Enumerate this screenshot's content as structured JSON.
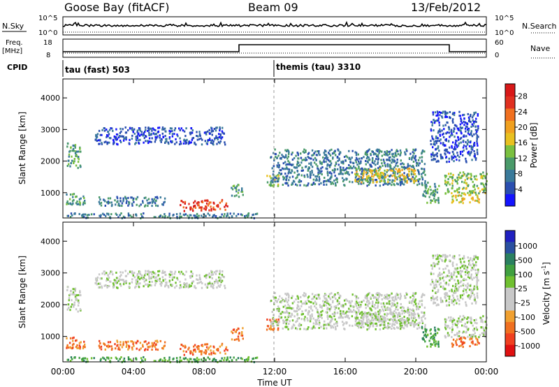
{
  "header": {
    "station": "Goose Bay (fitACF)",
    "beam": "Beam 09",
    "date": "13/Feb/2012"
  },
  "summary_panels": {
    "nsky_label": "N.Sky",
    "nsky_ticks": [
      "10^5",
      "10^0"
    ],
    "nsearch_label": "N.Search",
    "nsearch_ticks": [
      "10^5",
      "10^0"
    ],
    "freq_label": "Freq.",
    "freq_unit": "[MHz]",
    "freq_ticks": [
      "18",
      "8"
    ],
    "nave_label": "Nave",
    "nave_ticks": [
      "60",
      "0"
    ],
    "cpid_label": "CPID",
    "cpid_modes": [
      {
        "name": "tau (fast) 503",
        "start_hour": 0
      },
      {
        "name": "themis (tau) 3310",
        "start_hour": 12
      }
    ]
  },
  "axes": {
    "xlabel": "Time UT",
    "x_ticks": [
      "00:00",
      "04:00",
      "08:00",
      "12:00",
      "16:00",
      "20:00",
      "00:00"
    ],
    "x_hours": [
      0,
      4,
      8,
      12,
      16,
      20,
      24
    ],
    "ylabel": "Slant Range [km]",
    "y_ticks": [
      1000,
      2000,
      3000,
      4000
    ],
    "ylim": [
      200,
      4600
    ]
  },
  "colorbars": {
    "power": {
      "label": "Power [dB]",
      "ticks": [
        "4",
        "8",
        "12",
        "16",
        "20",
        "24",
        "28"
      ],
      "colors": [
        "#1414ff",
        "#2a4fb0",
        "#3a7a9a",
        "#4a9a6a",
        "#7ac040",
        "#e8c020",
        "#f0a020",
        "#f07020",
        "#e03020",
        "#d81818"
      ]
    },
    "velocity": {
      "label": "Velocity [m s",
      "label_sup": "-1",
      "label_close": "]",
      "ticks": [
        "1000",
        "500",
        "100",
        "25",
        "-25",
        "-100",
        "-500",
        "-1000"
      ],
      "colors": [
        "#2020c0",
        "#2a50a0",
        "#2a8060",
        "#40a040",
        "#70c030",
        "#c8c8c8",
        "#c8c8c8",
        "#f0a030",
        "#f07020",
        "#f04020",
        "#e01010"
      ]
    }
  },
  "chart_data": [
    {
      "type": "heatmap",
      "title": "Power",
      "xlabel": "Time UT",
      "ylabel": "Slant Range [km]",
      "ylim": [
        200,
        4600
      ],
      "xlim": [
        0,
        24
      ],
      "colorbar": "Power [dB]",
      "regions": [
        {
          "t0": 0.2,
          "t1": 1.0,
          "r0": 1800,
          "r1": 2600,
          "level": 3
        },
        {
          "t0": 1.8,
          "t1": 9.2,
          "r0": 2550,
          "r1": 3100,
          "level": 1
        },
        {
          "t0": 0.1,
          "t1": 1.3,
          "r0": 650,
          "r1": 1000,
          "level": 3
        },
        {
          "t0": 2.0,
          "t1": 5.8,
          "r0": 600,
          "r1": 900,
          "level": 2
        },
        {
          "t0": 6.6,
          "t1": 9.3,
          "r0": 450,
          "r1": 800,
          "level": 8
        },
        {
          "t0": 0.2,
          "t1": 11.0,
          "r0": 220,
          "r1": 380,
          "level": 2
        },
        {
          "t0": 9.5,
          "t1": 10.2,
          "r0": 900,
          "r1": 1300,
          "level": 3
        },
        {
          "t0": 11.5,
          "t1": 12.2,
          "r0": 1200,
          "r1": 1600,
          "level": 4
        },
        {
          "t0": 11.7,
          "t1": 20.5,
          "r0": 1250,
          "r1": 2400,
          "level": 2
        },
        {
          "t0": 16.5,
          "t1": 20.0,
          "r0": 1350,
          "r1": 1800,
          "level": 5
        },
        {
          "t0": 20.3,
          "t1": 21.3,
          "r0": 700,
          "r1": 1400,
          "level": 3
        },
        {
          "t0": 21.6,
          "t1": 24.0,
          "r0": 1000,
          "r1": 1700,
          "level": 4
        },
        {
          "t0": 22.0,
          "t1": 23.6,
          "r0": 700,
          "r1": 1000,
          "level": 5
        },
        {
          "t0": 20.8,
          "t1": 23.5,
          "r0": 2000,
          "r1": 3600,
          "level": 1
        }
      ]
    },
    {
      "type": "heatmap",
      "title": "Velocity",
      "xlabel": "Time UT",
      "ylabel": "Slant Range [km]",
      "ylim": [
        200,
        4600
      ],
      "xlim": [
        0,
        24
      ],
      "colorbar": "Velocity [m s^-1]",
      "regions": [
        {
          "t0": 0.2,
          "t1": 1.0,
          "r0": 1800,
          "r1": 2600,
          "level": 5
        },
        {
          "t0": 1.8,
          "t1": 9.2,
          "r0": 2550,
          "r1": 3100,
          "level": 5
        },
        {
          "t0": 0.1,
          "t1": 1.3,
          "r0": 650,
          "r1": 1000,
          "level": 8
        },
        {
          "t0": 2.0,
          "t1": 5.8,
          "r0": 600,
          "r1": 900,
          "level": 8
        },
        {
          "t0": 6.6,
          "t1": 9.3,
          "r0": 450,
          "r1": 800,
          "level": 8
        },
        {
          "t0": 0.2,
          "t1": 11.0,
          "r0": 220,
          "r1": 380,
          "level": 3
        },
        {
          "t0": 9.5,
          "t1": 10.2,
          "r0": 900,
          "r1": 1300,
          "level": 8
        },
        {
          "t0": 11.5,
          "t1": 12.2,
          "r0": 1200,
          "r1": 1600,
          "level": 8
        },
        {
          "t0": 11.7,
          "t1": 20.5,
          "r0": 1250,
          "r1": 2400,
          "level": 5
        },
        {
          "t0": 16.5,
          "t1": 20.0,
          "r0": 1350,
          "r1": 1800,
          "level": 5
        },
        {
          "t0": 20.3,
          "t1": 21.3,
          "r0": 700,
          "r1": 1400,
          "level": 3
        },
        {
          "t0": 21.6,
          "t1": 24.0,
          "r0": 1000,
          "r1": 1700,
          "level": 5
        },
        {
          "t0": 22.0,
          "t1": 23.6,
          "r0": 700,
          "r1": 1000,
          "level": 8
        },
        {
          "t0": 20.8,
          "t1": 23.5,
          "r0": 2000,
          "r1": 3600,
          "level": 5
        }
      ]
    }
  ]
}
